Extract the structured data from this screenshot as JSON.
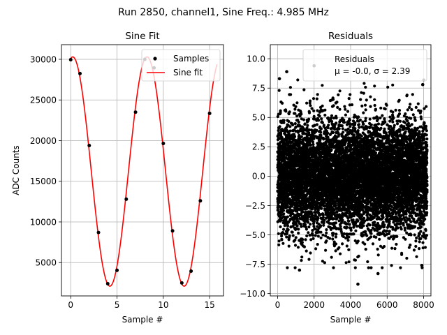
{
  "figure": {
    "suptitle": "Run 2850, channel1, Sine Freq.: 4.985 MHz"
  },
  "chart_data": [
    {
      "type": "line",
      "title": "Sine Fit",
      "xlabel": "Sample #",
      "ylabel": "ADC Counts",
      "xlim": [
        -1.0,
        16.5
      ],
      "ylim": [
        900,
        31800
      ],
      "xticks": [
        0,
        5,
        10,
        15
      ],
      "yticks": [
        5000,
        10000,
        15000,
        20000,
        25000,
        30000
      ],
      "grid": true,
      "legend": {
        "position": "top-right",
        "entries": [
          "Samples",
          "Sine fit"
        ]
      },
      "series": [
        {
          "name": "Samples",
          "kind": "scatter",
          "color": "#000000",
          "x": [
            0,
            1,
            2,
            3,
            4,
            5,
            6,
            7,
            8,
            9,
            10,
            11,
            12,
            13,
            14,
            15
          ],
          "y": [
            29950,
            28250,
            19400,
            8700,
            2400,
            4050,
            12800,
            23500,
            30000,
            28950,
            19650,
            8900,
            2500,
            3950,
            12600,
            23350
          ]
        },
        {
          "name": "Sine fit",
          "kind": "line",
          "color": "#ff0000",
          "model": {
            "offset": 16200,
            "amplitude": 14100,
            "period_samples": 8.02,
            "phase_sample": 0.22,
            "x_range": [
              0,
              15.8
            ]
          }
        }
      ]
    },
    {
      "type": "scatter",
      "title": "Residuals",
      "xlabel": "Sample #",
      "ylabel": "",
      "xlim": [
        -400,
        8400
      ],
      "ylim": [
        -10.2,
        11.2
      ],
      "xticks": [
        0,
        2000,
        4000,
        6000,
        8000
      ],
      "yticks": [
        -10.0,
        -7.5,
        -5.0,
        -2.5,
        0.0,
        2.5,
        5.0,
        7.5,
        10.0
      ],
      "ytick_labels": [
        "−10.0",
        "−7.5",
        "−5.0",
        "−2.5",
        "0.0",
        "2.5",
        "5.0",
        "7.5",
        "10.0"
      ],
      "grid": true,
      "legend": {
        "position": "top-right",
        "entries": [
          "Residuals",
          "μ = -0.0, σ = 2.39"
        ]
      },
      "series": [
        {
          "name": "Residuals",
          "color": "#000000",
          "distribution": {
            "n_points": 8192,
            "mean": -0.0,
            "sigma": 2.39
          },
          "outliers": [
            {
              "x": 2000,
              "y": 9.4
            },
            {
              "x": 500,
              "y": 8.9
            },
            {
              "x": 4400,
              "y": -9.2
            },
            {
              "x": 5500,
              "y": -8.3
            },
            {
              "x": 1200,
              "y": -8.0
            },
            {
              "x": 7900,
              "y": -7.6
            },
            {
              "x": 100,
              "y": 8.3
            },
            {
              "x": 7950,
              "y": 7.8
            }
          ]
        }
      ]
    }
  ]
}
